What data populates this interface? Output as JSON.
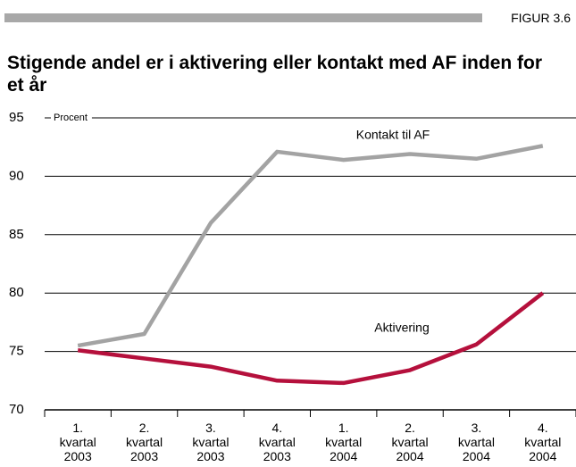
{
  "figure_label": "FIGUR 3.6",
  "chart_data": {
    "type": "line",
    "title": "Stigende andel er i aktivering eller kontakt med AF inden for et år",
    "ylabel": "Procent",
    "categories": [
      "1.\nkvartal\n2003",
      "2.\nkvartal\n2003",
      "3.\nkvartal\n2003",
      "4.\nkvartal\n2003",
      "1.\nkvartal\n2004",
      "2.\nkvartal\n2004",
      "3.\nkvartal\n2004",
      "4.\nkvartal\n2004"
    ],
    "series": [
      {
        "name": "Kontakt til AF",
        "color": "#a3a3a3",
        "values": [
          75.5,
          76.5,
          86,
          92.1,
          91.4,
          91.9,
          91.5,
          92.6
        ]
      },
      {
        "name": "Aktivering",
        "color": "#b5103c",
        "values": [
          75.1,
          74.4,
          73.7,
          72.5,
          72.3,
          73.4,
          75.6,
          80.0
        ]
      }
    ],
    "ylim": [
      70,
      95
    ],
    "yticks": [
      70,
      75,
      80,
      85,
      90,
      95
    ],
    "grid": true
  }
}
